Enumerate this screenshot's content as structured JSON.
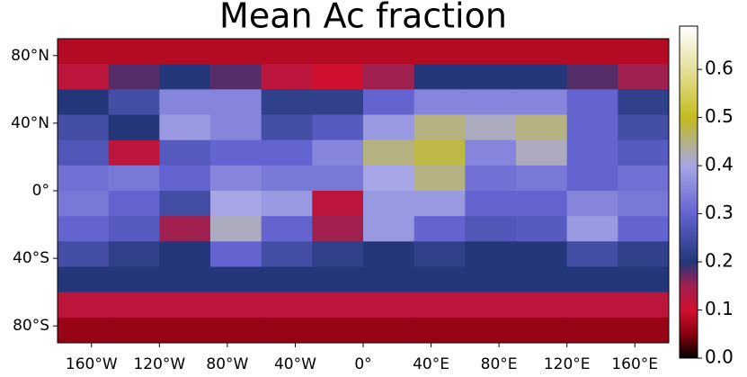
{
  "chart_data": {
    "type": "heatmap",
    "title": "Mean Ac fraction",
    "xlim": [
      -180,
      180
    ],
    "ylim": [
      -90,
      90
    ],
    "xticks": [
      {
        "value": -160,
        "label": "160°W"
      },
      {
        "value": -120,
        "label": "120°W"
      },
      {
        "value": -80,
        "label": "80°W"
      },
      {
        "value": -40,
        "label": "40°W"
      },
      {
        "value": 0,
        "label": "0°"
      },
      {
        "value": 40,
        "label": "40°E"
      },
      {
        "value": 80,
        "label": "80°E"
      },
      {
        "value": 120,
        "label": "120°E"
      },
      {
        "value": 160,
        "label": "160°E"
      }
    ],
    "yticks": [
      {
        "value": 80,
        "label": "80°N"
      },
      {
        "value": 40,
        "label": "40°N"
      },
      {
        "value": 0,
        "label": "0°"
      },
      {
        "value": -40,
        "label": "40°S"
      },
      {
        "value": -80,
        "label": "80°S"
      }
    ],
    "lon_edges": [
      -180,
      -150,
      -120,
      -90,
      -60,
      -30,
      0,
      30,
      60,
      90,
      120,
      150,
      180
    ],
    "lat_edges": [
      90,
      75,
      60,
      45,
      30,
      15,
      0,
      -15,
      -30,
      -45,
      -60,
      -75,
      -90
    ],
    "values": [
      [
        0.08,
        0.08,
        0.08,
        0.08,
        0.08,
        0.08,
        0.08,
        0.08,
        0.08,
        0.08,
        0.08,
        0.08
      ],
      [
        0.12,
        0.18,
        0.2,
        0.18,
        0.12,
        0.1,
        0.15,
        0.2,
        0.2,
        0.2,
        0.18,
        0.15
      ],
      [
        0.2,
        0.25,
        0.35,
        0.35,
        0.22,
        0.22,
        0.3,
        0.35,
        0.35,
        0.35,
        0.3,
        0.22
      ],
      [
        0.25,
        0.2,
        0.38,
        0.35,
        0.25,
        0.28,
        0.38,
        0.45,
        0.42,
        0.45,
        0.3,
        0.25
      ],
      [
        0.27,
        0.12,
        0.28,
        0.3,
        0.3,
        0.35,
        0.45,
        0.48,
        0.35,
        0.42,
        0.3,
        0.28
      ],
      [
        0.32,
        0.33,
        0.3,
        0.35,
        0.33,
        0.33,
        0.4,
        0.45,
        0.32,
        0.33,
        0.3,
        0.32
      ],
      [
        0.33,
        0.3,
        0.25,
        0.4,
        0.38,
        0.12,
        0.38,
        0.38,
        0.3,
        0.3,
        0.35,
        0.33
      ],
      [
        0.3,
        0.28,
        0.15,
        0.42,
        0.3,
        0.15,
        0.38,
        0.3,
        0.27,
        0.28,
        0.38,
        0.3
      ],
      [
        0.25,
        0.22,
        0.2,
        0.3,
        0.25,
        0.22,
        0.2,
        0.22,
        0.2,
        0.2,
        0.25,
        0.22
      ],
      [
        0.2,
        0.2,
        0.2,
        0.2,
        0.2,
        0.2,
        0.2,
        0.2,
        0.2,
        0.2,
        0.2,
        0.2
      ],
      [
        0.12,
        0.12,
        0.12,
        0.12,
        0.12,
        0.12,
        0.12,
        0.12,
        0.12,
        0.12,
        0.12,
        0.12
      ],
      [
        0.06,
        0.06,
        0.06,
        0.06,
        0.06,
        0.06,
        0.06,
        0.06,
        0.06,
        0.06,
        0.06,
        0.06
      ]
    ],
    "clim": [
      0,
      0.69
    ],
    "cticks": [
      {
        "value": 0,
        "label": "0.0"
      },
      0.1,
      0.2,
      0.3,
      0.4,
      0.5,
      0.6
    ],
    "colormap": [
      [
        0,
        "#000000"
      ],
      [
        0.05,
        "#8a0010"
      ],
      [
        0.1,
        "#d01030"
      ],
      [
        0.15,
        "#a02050"
      ],
      [
        0.2,
        "#23377a"
      ],
      [
        0.3,
        "#6464d0"
      ],
      [
        0.4,
        "#a6a6e6"
      ],
      [
        0.5,
        "#c4bc1c"
      ],
      [
        0.6,
        "#e4e09a"
      ],
      [
        0.69,
        "#ffffff"
      ]
    ]
  }
}
